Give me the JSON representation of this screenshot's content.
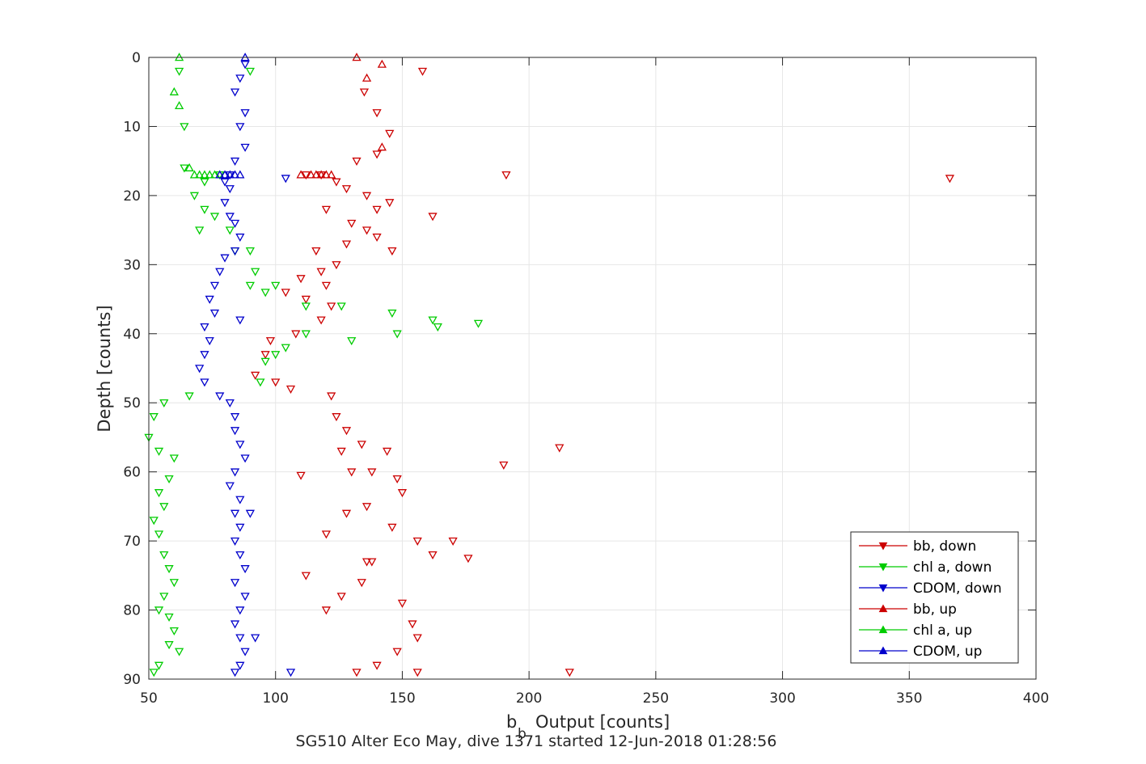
{
  "chart_data": {
    "type": "scatter",
    "title": "",
    "xlabel": "Output [counts]",
    "xlabel_main": "b",
    "xlabel_sub": "b",
    "ylabel": "Depth [counts]",
    "caption": "SG510 Alter Eco May, dive 1371 started 12-Jun-2018 01:28:56",
    "xlim": [
      50,
      400
    ],
    "ylim": [
      0,
      90
    ],
    "y_reversed": true,
    "xticks": [
      "50",
      "100",
      "150",
      "200",
      "250",
      "300",
      "350",
      "400"
    ],
    "yticks": [
      "0",
      "10",
      "20",
      "30",
      "40",
      "50",
      "60",
      "70",
      "80",
      "90"
    ],
    "grid": true,
    "legend_position": "bottom-right",
    "colors": {
      "bb": "#cc0000",
      "chl": "#00cc00",
      "cdom": "#0000cc"
    },
    "series": [
      {
        "name": "bb, down",
        "marker": "triangle-down",
        "color": "#cc0000",
        "points": [
          [
            158,
            2
          ],
          [
            135,
            5
          ],
          [
            140,
            8
          ],
          [
            145,
            11
          ],
          [
            140,
            14
          ],
          [
            132,
            15
          ],
          [
            191,
            17
          ],
          [
            112,
            17
          ],
          [
            118,
            17
          ],
          [
            124,
            18
          ],
          [
            128,
            19
          ],
          [
            136,
            20
          ],
          [
            145,
            21
          ],
          [
            120,
            22
          ],
          [
            140,
            22
          ],
          [
            130,
            24
          ],
          [
            162,
            23
          ],
          [
            136,
            25
          ],
          [
            128,
            27
          ],
          [
            140,
            26
          ],
          [
            146,
            28
          ],
          [
            116,
            28
          ],
          [
            124,
            30
          ],
          [
            110,
            32
          ],
          [
            118,
            31
          ],
          [
            120,
            33
          ],
          [
            104,
            34
          ],
          [
            112,
            35
          ],
          [
            122,
            36
          ],
          [
            118,
            38
          ],
          [
            108,
            40
          ],
          [
            98,
            41
          ],
          [
            96,
            43
          ],
          [
            92,
            46
          ],
          [
            100,
            47
          ],
          [
            106,
            48
          ],
          [
            122,
            49
          ],
          [
            124,
            52
          ],
          [
            128,
            54
          ],
          [
            134,
            56
          ],
          [
            126,
            57
          ],
          [
            144,
            57
          ],
          [
            130,
            60
          ],
          [
            138,
            60
          ],
          [
            148,
            61
          ],
          [
            150,
            63
          ],
          [
            128,
            66
          ],
          [
            136,
            65
          ],
          [
            146,
            68
          ],
          [
            156,
            70
          ],
          [
            162,
            72
          ],
          [
            138,
            73
          ],
          [
            134,
            76
          ],
          [
            126,
            78
          ],
          [
            120,
            80
          ],
          [
            150,
            79
          ],
          [
            154,
            82
          ],
          [
            156,
            84
          ],
          [
            148,
            86
          ],
          [
            140,
            88
          ],
          [
            132,
            89
          ],
          [
            156,
            89
          ],
          [
            366,
            17.5
          ],
          [
            212,
            56.5
          ],
          [
            190,
            59
          ],
          [
            216,
            89
          ],
          [
            170,
            70
          ],
          [
            176,
            72.5
          ],
          [
            110,
            60.5
          ],
          [
            120,
            69
          ],
          [
            112,
            75
          ],
          [
            136,
            73
          ]
        ]
      },
      {
        "name": "chl a, down",
        "marker": "triangle-down",
        "color": "#00cc00",
        "points": [
          [
            62,
            2
          ],
          [
            64,
            10
          ],
          [
            64,
            16
          ],
          [
            78,
            17
          ],
          [
            72,
            18
          ],
          [
            68,
            20
          ],
          [
            72,
            22
          ],
          [
            76,
            23
          ],
          [
            70,
            25
          ],
          [
            82,
            25
          ],
          [
            84,
            28
          ],
          [
            90,
            28
          ],
          [
            92,
            31
          ],
          [
            90,
            33
          ],
          [
            96,
            34
          ],
          [
            100,
            33
          ],
          [
            112,
            36
          ],
          [
            126,
            36
          ],
          [
            146,
            37
          ],
          [
            162,
            38
          ],
          [
            164,
            39
          ],
          [
            148,
            40
          ],
          [
            130,
            41
          ],
          [
            112,
            40
          ],
          [
            104,
            42
          ],
          [
            100,
            43
          ],
          [
            96,
            44
          ],
          [
            94,
            47
          ],
          [
            66,
            49
          ],
          [
            56,
            50
          ],
          [
            52,
            52
          ],
          [
            50,
            55
          ],
          [
            54,
            57
          ],
          [
            60,
            58
          ],
          [
            58,
            61
          ],
          [
            54,
            63
          ],
          [
            56,
            65
          ],
          [
            52,
            67
          ],
          [
            54,
            69
          ],
          [
            56,
            72
          ],
          [
            58,
            74
          ],
          [
            60,
            76
          ],
          [
            56,
            78
          ],
          [
            54,
            80
          ],
          [
            58,
            81
          ],
          [
            60,
            83
          ],
          [
            58,
            85
          ],
          [
            62,
            86
          ],
          [
            54,
            88
          ],
          [
            52,
            89
          ],
          [
            90,
            2
          ],
          [
            180,
            38.5
          ]
        ]
      },
      {
        "name": "CDOM, down",
        "marker": "triangle-down",
        "color": "#0000cc",
        "points": [
          [
            88,
            1
          ],
          [
            86,
            3
          ],
          [
            84,
            5
          ],
          [
            88,
            8
          ],
          [
            86,
            10
          ],
          [
            88,
            13
          ],
          [
            84,
            15
          ],
          [
            82,
            17
          ],
          [
            80,
            18
          ],
          [
            82,
            19
          ],
          [
            80,
            21
          ],
          [
            82,
            23
          ],
          [
            84,
            24
          ],
          [
            86,
            26
          ],
          [
            84,
            28
          ],
          [
            80,
            29
          ],
          [
            78,
            31
          ],
          [
            76,
            33
          ],
          [
            74,
            35
          ],
          [
            76,
            37
          ],
          [
            72,
            39
          ],
          [
            74,
            41
          ],
          [
            72,
            43
          ],
          [
            70,
            45
          ],
          [
            72,
            47
          ],
          [
            78,
            49
          ],
          [
            82,
            50
          ],
          [
            84,
            52
          ],
          [
            84,
            54
          ],
          [
            86,
            56
          ],
          [
            88,
            58
          ],
          [
            84,
            60
          ],
          [
            82,
            62
          ],
          [
            86,
            64
          ],
          [
            84,
            66
          ],
          [
            90,
            66
          ],
          [
            86,
            68
          ],
          [
            84,
            70
          ],
          [
            86,
            72
          ],
          [
            88,
            74
          ],
          [
            84,
            76
          ],
          [
            88,
            78
          ],
          [
            86,
            80
          ],
          [
            84,
            82
          ],
          [
            86,
            84
          ],
          [
            88,
            86
          ],
          [
            86,
            88
          ],
          [
            84,
            89
          ],
          [
            92,
            84
          ],
          [
            104,
            17.5
          ],
          [
            106,
            89
          ],
          [
            86,
            38
          ]
        ]
      },
      {
        "name": "bb, up",
        "marker": "triangle-up",
        "color": "#cc0000",
        "points": [
          [
            132,
            0
          ],
          [
            142,
            1
          ],
          [
            136,
            3
          ],
          [
            142,
            13
          ],
          [
            114,
            17
          ],
          [
            118,
            17
          ],
          [
            122,
            17
          ],
          [
            110,
            17
          ],
          [
            120,
            17
          ],
          [
            116,
            17
          ]
        ]
      },
      {
        "name": "chl a, up",
        "marker": "triangle-up",
        "color": "#00cc00",
        "points": [
          [
            62,
            0
          ],
          [
            60,
            5
          ],
          [
            62,
            7
          ],
          [
            66,
            16
          ],
          [
            72,
            17
          ],
          [
            76,
            17
          ],
          [
            74,
            17
          ],
          [
            70,
            17
          ],
          [
            68,
            17
          ]
        ]
      },
      {
        "name": "CDOM, up",
        "marker": "triangle-up",
        "color": "#0000cc",
        "points": [
          [
            88,
            0
          ],
          [
            82,
            17
          ],
          [
            84,
            17
          ],
          [
            80,
            17
          ],
          [
            86,
            17
          ],
          [
            78,
            17
          ]
        ]
      }
    ]
  }
}
